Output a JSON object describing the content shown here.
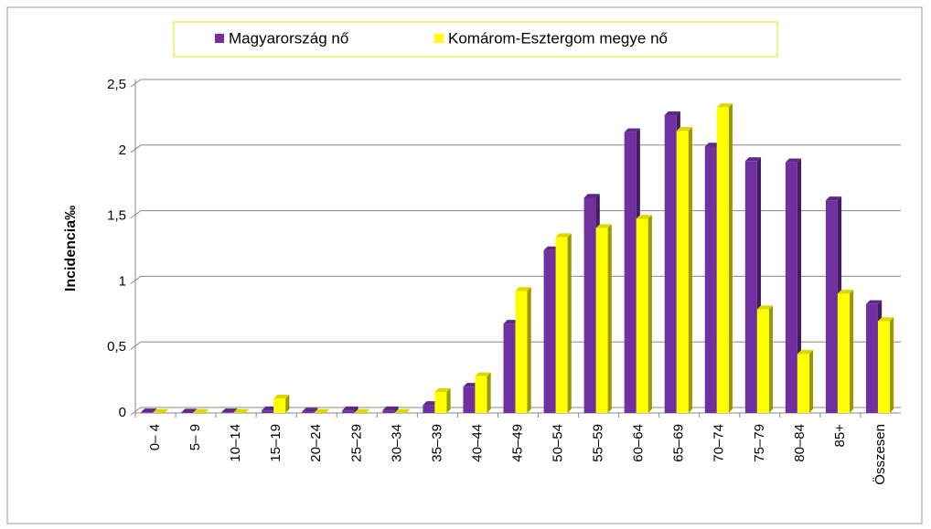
{
  "chart_data": {
    "type": "bar",
    "y_label": "Incidencia‰",
    "categories": [
      "0– 4",
      "5– 9",
      "10–14",
      "15–19",
      "20–24",
      "25–29",
      "30–34",
      "35–39",
      "40–44",
      "45–49",
      "50–54",
      "55–59",
      "60–64",
      "65–69",
      "70–74",
      "75–79",
      "80–84",
      "85+",
      "Összesen"
    ],
    "series": [
      {
        "name": "Magyarország nő",
        "color": "#7030a0",
        "values": [
          0.005,
          0.003,
          0.005,
          0.02,
          0.01,
          0.02,
          0.02,
          0.06,
          0.2,
          0.68,
          1.24,
          1.64,
          2.14,
          2.27,
          2.03,
          1.92,
          1.91,
          1.62,
          0.83
        ]
      },
      {
        "name": "Komárom-Esztergom megye nő",
        "color": "#ffff00",
        "values": [
          0,
          0,
          0,
          0.11,
          0,
          0,
          0,
          0.16,
          0.28,
          0.93,
          1.34,
          1.41,
          1.48,
          2.15,
          2.33,
          0.79,
          0.45,
          0.91,
          0.7
        ]
      }
    ],
    "ylim": [
      0,
      2.5
    ],
    "yticks": [
      0,
      {
        "value": 0.5,
        "label": "0,5"
      },
      1,
      {
        "value": 1.5,
        "label": "1,5"
      },
      2,
      {
        "value": 2.5,
        "label": "2,5"
      }
    ],
    "grid": true,
    "legend": "top"
  }
}
